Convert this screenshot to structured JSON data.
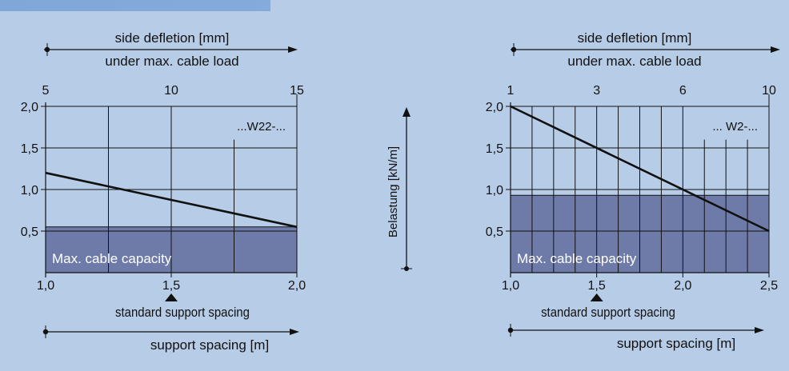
{
  "colors": {
    "background": "#b7cde7",
    "header_band": "#7fa7d8",
    "capacity_fill": "#6e7ba8",
    "line": "#111111"
  },
  "center_axis_label": "Belastung [kN/m]",
  "chart_data": [
    {
      "type": "line",
      "series_label": "...W22-...",
      "top_axis_label_1": "side defletion [mm]",
      "top_axis_label_2": "under max. cable load",
      "top_ticks": [
        "5",
        "10",
        "15"
      ],
      "top_tick_values": [
        1.0,
        1.5,
        2.0
      ],
      "x_ticks": [
        "1,0",
        "1,5",
        "2,0"
      ],
      "x_tick_values": [
        1.0,
        1.5,
        2.0
      ],
      "y_ticks": [
        "0,5",
        "1,0",
        "1,5",
        "2,0"
      ],
      "y_tick_values": [
        0.5,
        1.0,
        1.5,
        2.0
      ],
      "xlim": [
        1.0,
        2.0
      ],
      "ylim": [
        0,
        2.0
      ],
      "vertical_grid": [
        1.25,
        1.5,
        1.75
      ],
      "vertical_grid_top": [
        2.0,
        2.0,
        1.6
      ],
      "horizontal_grid": [
        0.5,
        1.0,
        1.5,
        2.0
      ],
      "line": {
        "x": [
          1.0,
          2.0
        ],
        "y": [
          1.2,
          0.55
        ]
      },
      "capacity_value": 0.55,
      "capacity_label": "Max. cable capacity",
      "standard_spacing": 1.5,
      "standard_spacing_label": "standard support spacing",
      "bottom_axis_label": "support spacing [m]"
    },
    {
      "type": "line",
      "series_label": "... W2-...",
      "top_axis_label_1": "side defletion [mm]",
      "top_axis_label_2": "under max. cable load",
      "top_ticks": [
        "1",
        "3",
        "6",
        "10"
      ],
      "top_tick_values": [
        1.0,
        1.5,
        2.0,
        2.5
      ],
      "x_ticks": [
        "1,0",
        "1,5",
        "2,0",
        "2,5"
      ],
      "x_tick_values": [
        1.0,
        1.5,
        2.0,
        2.5
      ],
      "y_ticks": [
        "0,5",
        "1,0",
        "1,5",
        "2,0"
      ],
      "y_tick_values": [
        0.5,
        1.0,
        1.5,
        2.0
      ],
      "xlim": [
        1.0,
        2.5
      ],
      "ylim": [
        0,
        2.0
      ],
      "vertical_grid": [
        1.125,
        1.25,
        1.375,
        1.5,
        1.625,
        1.75,
        1.875,
        2.0,
        2.125,
        2.25,
        2.375
      ],
      "vertical_grid_top": [
        2.0,
        2.0,
        2.0,
        2.0,
        2.0,
        2.0,
        2.0,
        2.0,
        1.6,
        1.6,
        1.6
      ],
      "horizontal_grid": [
        0.5,
        1.0,
        1.5,
        2.0
      ],
      "line": {
        "x": [
          1.0,
          2.5
        ],
        "y": [
          2.0,
          0.5
        ]
      },
      "capacity_value": 0.93,
      "capacity_label": "Max. cable capacity",
      "standard_spacing": 1.5,
      "standard_spacing_label": "standard support spacing",
      "bottom_axis_label": "support spacing [m]"
    }
  ]
}
